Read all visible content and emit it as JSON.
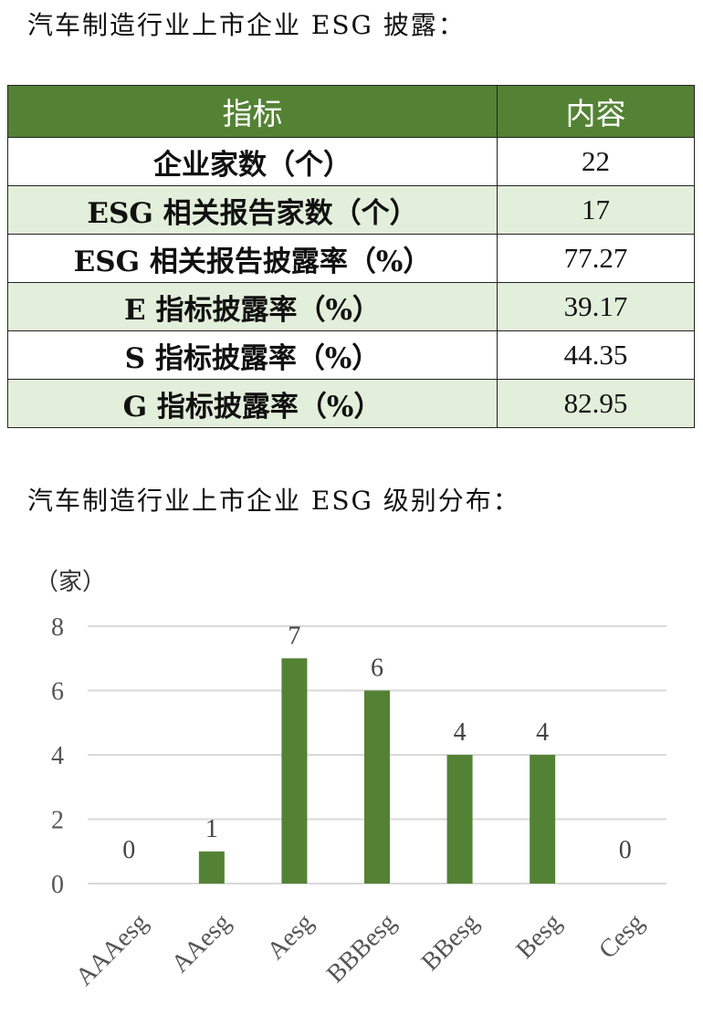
{
  "headings": {
    "table_title": "汽车制造行业上市企业 ESG 披露：",
    "chart_title": "汽车制造行业上市企业 ESG 级别分布："
  },
  "table": {
    "headers": [
      "指标",
      "内容"
    ],
    "rows": [
      {
        "label": "企业家数（个）",
        "value": "22"
      },
      {
        "label": "ESG 相关报告家数（个）",
        "value": "17"
      },
      {
        "label": "ESG 相关报告披露率（%）",
        "value": "77.27"
      },
      {
        "label": "E 指标披露率（%）",
        "value": "39.17"
      },
      {
        "label": "S 指标披露率（%）",
        "value": "44.35"
      },
      {
        "label": "G 指标披露率（%）",
        "value": "82.95"
      }
    ],
    "colors": {
      "header_bg": "#548235",
      "header_text": "#ffffff",
      "alt_row_bg": "#e2efda"
    }
  },
  "chart_data": {
    "type": "bar",
    "unit_label": "（家）",
    "categories": [
      "AAAesg",
      "AAesg",
      "Aesg",
      "BBBesg",
      "BBesg",
      "Besg",
      "Cesg"
    ],
    "values": [
      0,
      1,
      7,
      6,
      4,
      4,
      0
    ],
    "yticks": [
      0,
      2,
      4,
      6,
      8
    ],
    "ylim": [
      0,
      8
    ],
    "grid": true,
    "data_labels": true,
    "bar_color": "#548235",
    "grid_color": "#d9d9d9"
  }
}
